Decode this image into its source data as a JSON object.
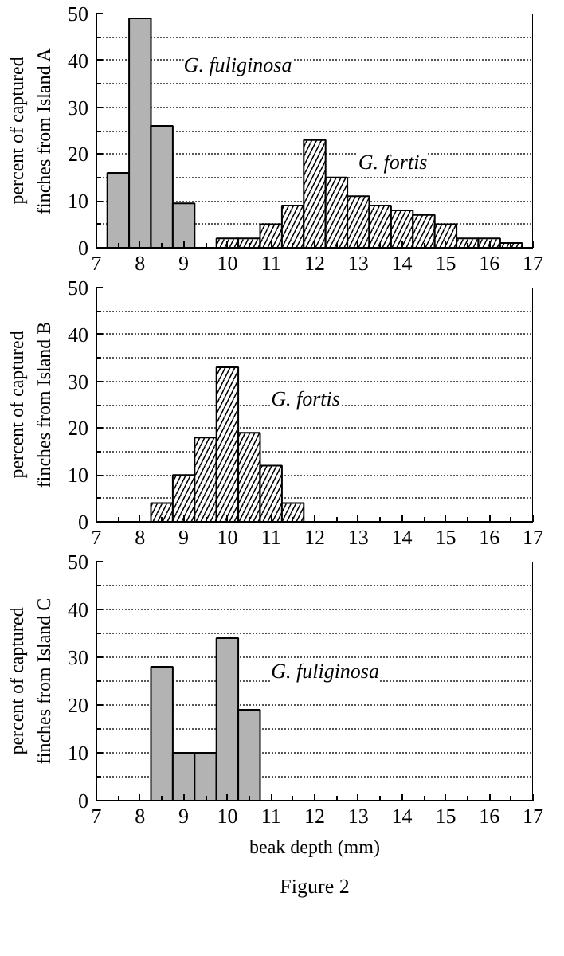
{
  "chart_data": [
    {
      "type": "bar",
      "ylabel": "percent of captured\nfinches from Island A",
      "xlim": [
        7,
        17
      ],
      "ylim": [
        0,
        50
      ],
      "xticks": [
        7,
        8,
        9,
        10,
        11,
        12,
        13,
        14,
        15,
        16,
        17
      ],
      "yticks": [
        0,
        10,
        20,
        30,
        40,
        50
      ],
      "grid": "y",
      "series": [
        {
          "name": "G. fuliginosa",
          "color": "#b3b3b3",
          "x": [
            7.5,
            8,
            8.5,
            9
          ],
          "values": [
            16,
            49,
            26,
            9.5
          ]
        },
        {
          "name": "G. fortis",
          "color": "#ffffff",
          "x": [
            10,
            10.5,
            11,
            11.5,
            12,
            12.5,
            13,
            13.5,
            14,
            14.5,
            15,
            15.5,
            16,
            16.5
          ],
          "values": [
            2,
            2,
            5,
            9,
            23,
            15,
            11,
            9,
            8,
            7,
            5,
            2,
            2,
            1
          ]
        }
      ]
    },
    {
      "type": "bar",
      "ylabel": "percent of captured\nfinches from Island B",
      "xlim": [
        7,
        17
      ],
      "ylim": [
        0,
        50
      ],
      "xticks": [
        7,
        8,
        9,
        10,
        11,
        12,
        13,
        14,
        15,
        16,
        17
      ],
      "yticks": [
        0,
        10,
        20,
        30,
        40,
        50
      ],
      "grid": "y",
      "series": [
        {
          "name": "G. fortis",
          "color": "#ffffff",
          "x": [
            8.5,
            9,
            9.5,
            10,
            10.5,
            11,
            11.5
          ],
          "values": [
            4,
            10,
            18,
            33,
            19,
            12,
            4
          ]
        }
      ]
    },
    {
      "type": "bar",
      "xlabel": "beak depth (mm)",
      "ylabel": "percent of captured\nfinches from Island C",
      "xlim": [
        7,
        17
      ],
      "ylim": [
        0,
        50
      ],
      "xticks": [
        7,
        8,
        9,
        10,
        11,
        12,
        13,
        14,
        15,
        16,
        17
      ],
      "yticks": [
        0,
        10,
        20,
        30,
        40,
        50
      ],
      "grid": "y",
      "series": [
        {
          "name": "G. fuliginosa",
          "color": "#b3b3b3",
          "x": [
            8.5,
            9,
            9.5,
            10,
            10.5
          ],
          "values": [
            28,
            10,
            10,
            34,
            19
          ]
        }
      ],
      "annotations": [
        "Figure 2"
      ]
    }
  ]
}
